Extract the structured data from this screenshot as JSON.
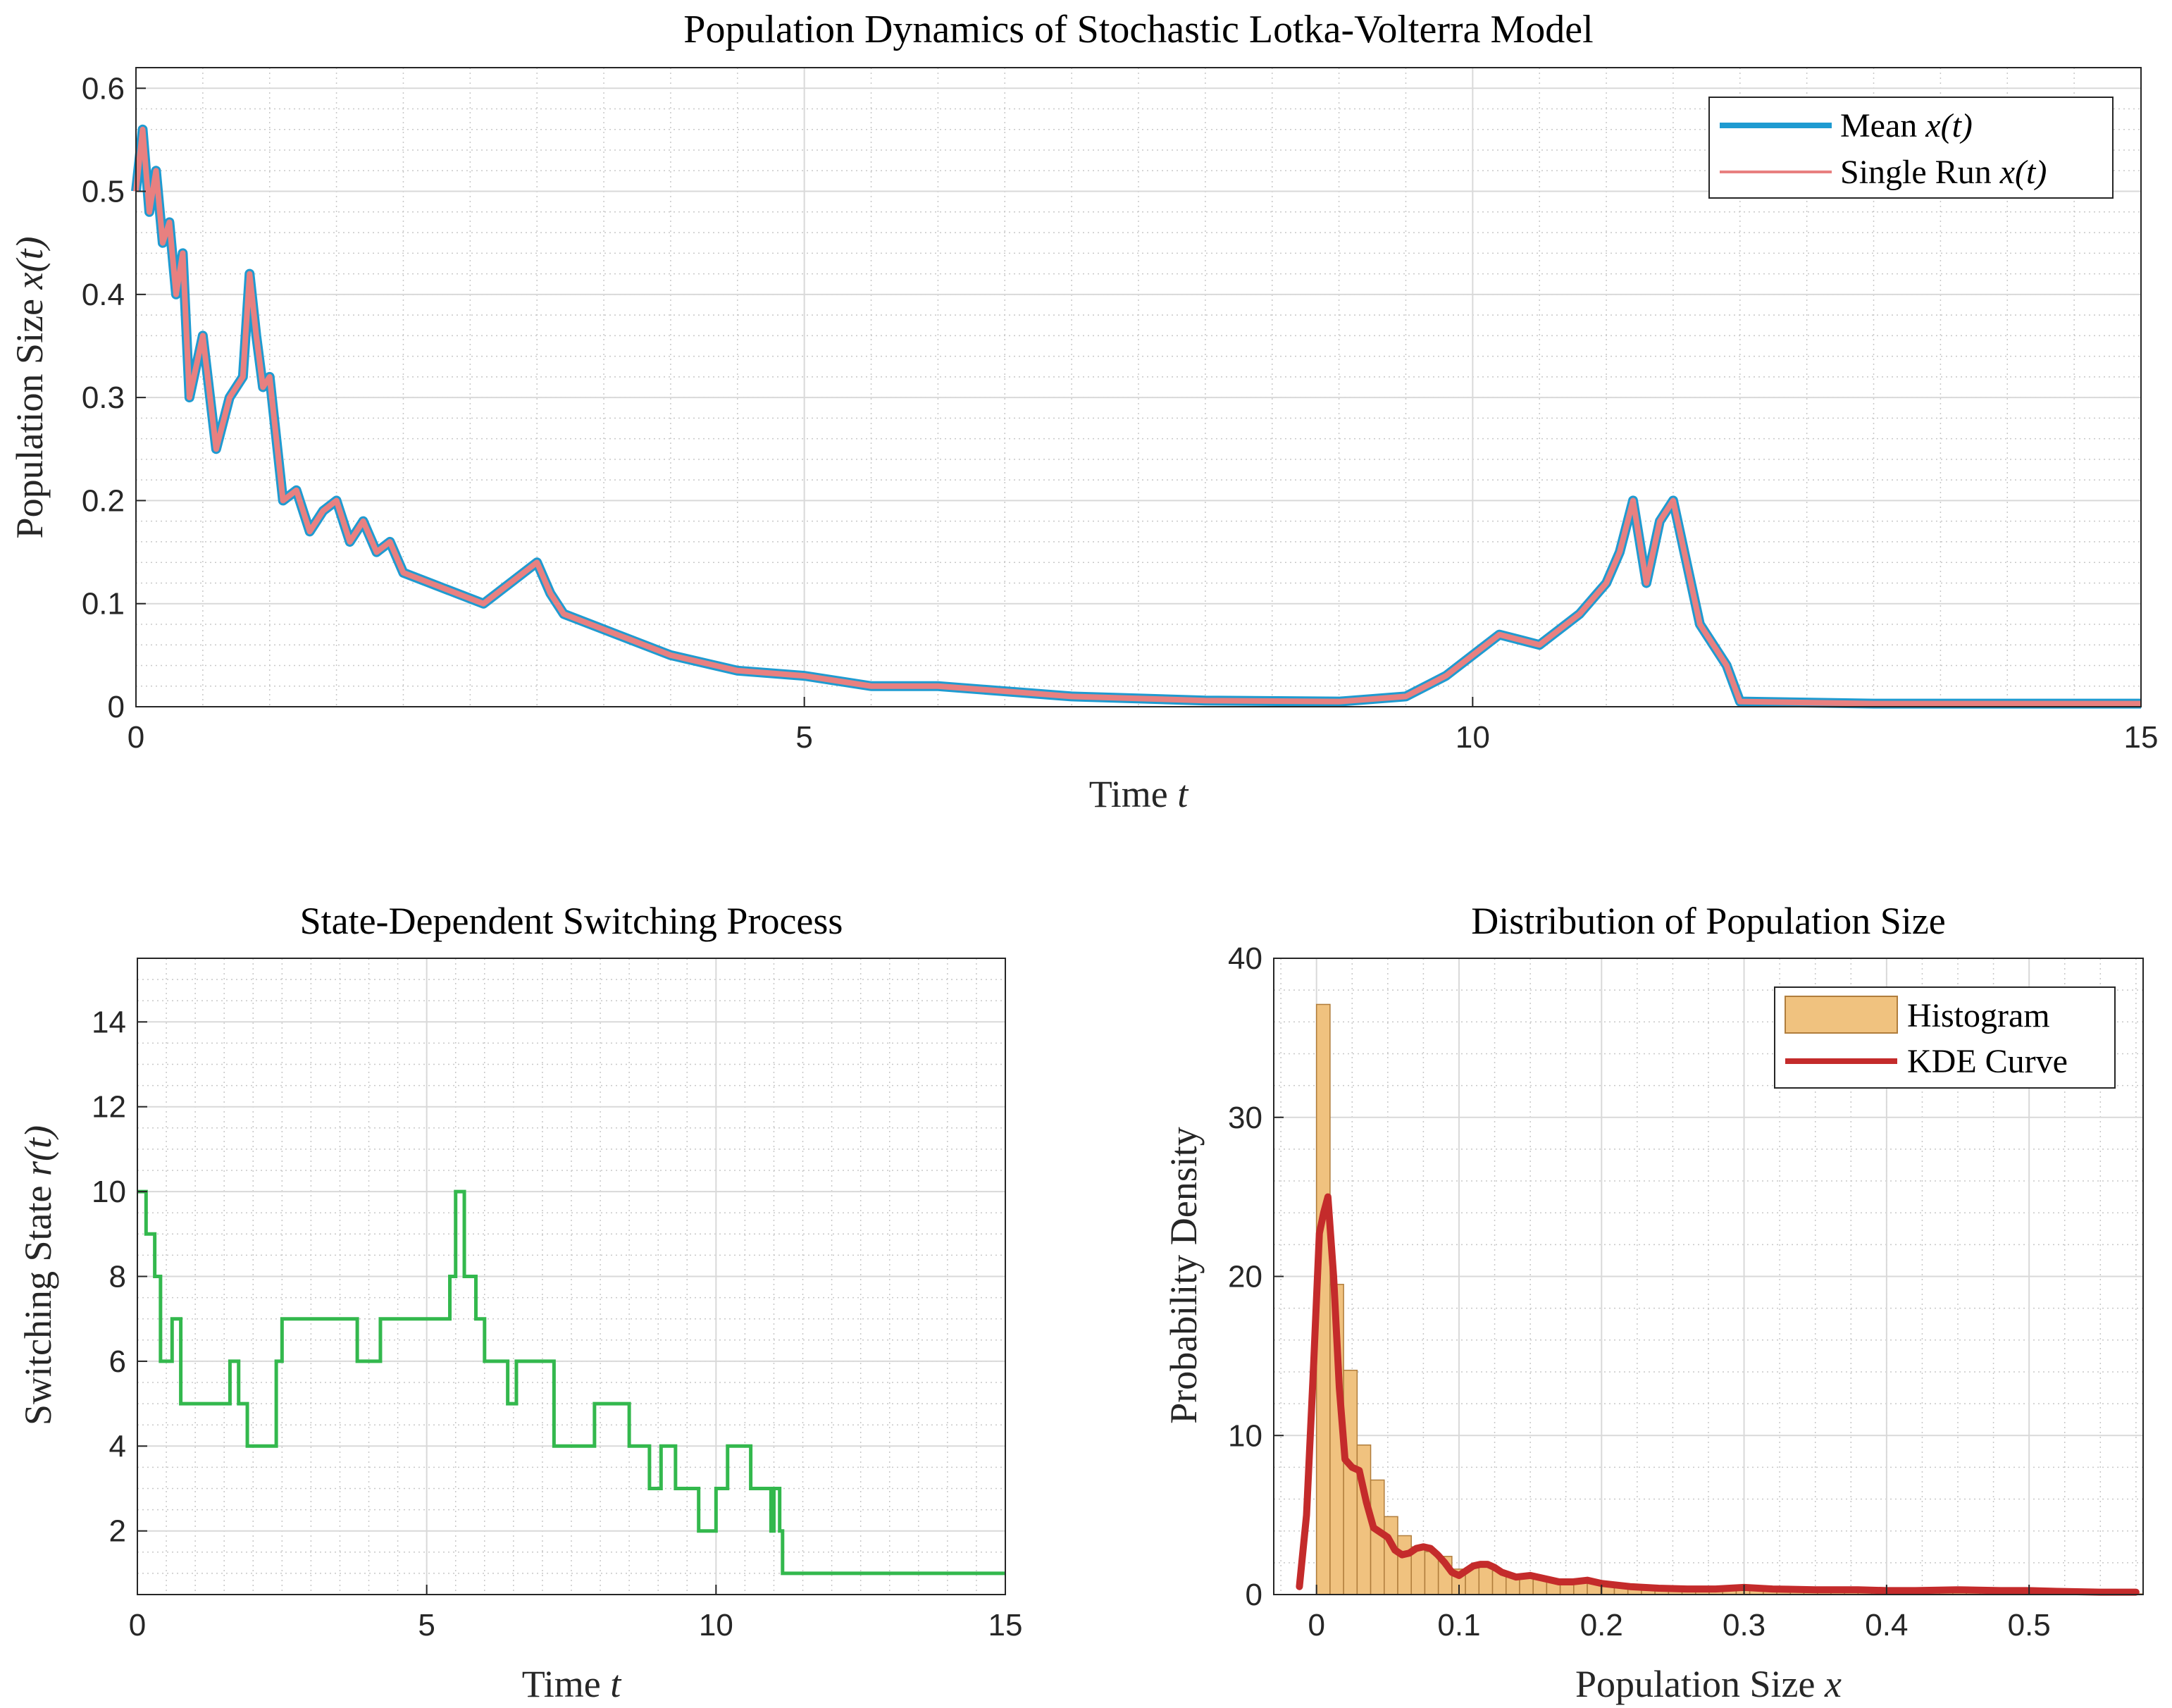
{
  "colors": {
    "mean_line": "#1f9bd1",
    "single_run": "#e88080",
    "switching": "#33b84d",
    "histogram_fill": "#f0c27f",
    "histogram_edge": "#b07d3c",
    "kde": "#c42b2b",
    "grid_major": "#d9d9d9",
    "grid_minor": "#c8c8c8",
    "axis": "#262626"
  },
  "chart_data": [
    {
      "type": "line",
      "title": "Population Dynamics of Stochastic Lotka-Volterra Model",
      "xlabel": "Time",
      "xlabel_var": "t",
      "ylabel": "Population Size",
      "ylabel_var": "x(t)",
      "xlim": [
        0,
        15
      ],
      "ylim": [
        0,
        0.62
      ],
      "xticks": [
        0,
        5,
        10,
        15
      ],
      "yticks": [
        0,
        0.1,
        0.2,
        0.3,
        0.4,
        0.5,
        0.6
      ],
      "xtick_labels": [
        "0",
        "5",
        "10",
        "15"
      ],
      "ytick_labels": [
        "0",
        "0.1",
        "0.2",
        "0.3",
        "0.4",
        "0.5",
        "0.6"
      ],
      "grid": true,
      "legend_position": "top-right",
      "series": [
        {
          "name": "Mean",
          "var": "x(t)",
          "x": [
            0,
            0.05,
            0.1,
            0.15,
            0.2,
            0.25,
            0.3,
            0.35,
            0.4,
            0.5,
            0.6,
            0.7,
            0.8,
            0.85,
            0.9,
            0.95,
            1.0,
            1.1,
            1.2,
            1.3,
            1.4,
            1.5,
            1.6,
            1.7,
            1.8,
            1.9,
            2.0,
            2.2,
            2.4,
            2.6,
            2.8,
            3.0,
            3.1,
            3.2,
            3.4,
            3.6,
            3.8,
            4.0,
            4.5,
            5.0,
            5.5,
            6.0,
            7.0,
            8.0,
            9.0,
            9.5,
            9.8,
            10.0,
            10.2,
            10.5,
            10.8,
            11.0,
            11.1,
            11.2,
            11.3,
            11.4,
            11.5,
            11.7,
            11.9,
            12.0,
            13.0,
            15.0
          ],
          "y": [
            0.5,
            0.56,
            0.48,
            0.52,
            0.45,
            0.47,
            0.4,
            0.44,
            0.3,
            0.36,
            0.25,
            0.3,
            0.32,
            0.42,
            0.36,
            0.31,
            0.32,
            0.2,
            0.21,
            0.17,
            0.19,
            0.2,
            0.16,
            0.18,
            0.15,
            0.16,
            0.13,
            0.12,
            0.11,
            0.1,
            0.12,
            0.14,
            0.11,
            0.09,
            0.08,
            0.07,
            0.06,
            0.05,
            0.035,
            0.03,
            0.02,
            0.02,
            0.01,
            0.006,
            0.005,
            0.01,
            0.03,
            0.05,
            0.07,
            0.06,
            0.09,
            0.12,
            0.15,
            0.2,
            0.12,
            0.18,
            0.2,
            0.08,
            0.04,
            0.005,
            0.003,
            0.003
          ]
        },
        {
          "name": "Single Run",
          "var": "x(t)",
          "x": [
            0,
            0.05,
            0.1,
            0.15,
            0.2,
            0.25,
            0.3,
            0.35,
            0.4,
            0.5,
            0.6,
            0.7,
            0.8,
            0.85,
            0.9,
            0.95,
            1.0,
            1.1,
            1.2,
            1.3,
            1.4,
            1.5,
            1.6,
            1.7,
            1.8,
            1.9,
            2.0,
            2.2,
            2.4,
            2.6,
            2.8,
            3.0,
            3.1,
            3.2,
            3.4,
            3.6,
            3.8,
            4.0,
            4.5,
            5.0,
            5.5,
            6.0,
            7.0,
            8.0,
            9.0,
            9.5,
            9.8,
            10.0,
            10.2,
            10.5,
            10.8,
            11.0,
            11.1,
            11.2,
            11.3,
            11.4,
            11.5,
            11.7,
            11.9,
            12.0,
            13.0,
            15.0
          ],
          "y": [
            0.5,
            0.56,
            0.48,
            0.52,
            0.45,
            0.47,
            0.4,
            0.44,
            0.3,
            0.36,
            0.25,
            0.3,
            0.32,
            0.42,
            0.36,
            0.31,
            0.32,
            0.2,
            0.21,
            0.17,
            0.19,
            0.2,
            0.16,
            0.18,
            0.15,
            0.16,
            0.13,
            0.12,
            0.11,
            0.1,
            0.12,
            0.14,
            0.11,
            0.09,
            0.08,
            0.07,
            0.06,
            0.05,
            0.035,
            0.03,
            0.02,
            0.02,
            0.01,
            0.006,
            0.005,
            0.01,
            0.03,
            0.05,
            0.07,
            0.06,
            0.09,
            0.12,
            0.15,
            0.2,
            0.12,
            0.18,
            0.2,
            0.08,
            0.04,
            0.005,
            0.003,
            0.003
          ]
        }
      ]
    },
    {
      "type": "line",
      "title": "State-Dependent Switching Process",
      "xlabel": "Time",
      "xlabel_var": "t",
      "ylabel": "Switching State",
      "ylabel_var": "r(t)",
      "xlim": [
        0,
        15
      ],
      "ylim": [
        0.5,
        15.5
      ],
      "xticks": [
        0,
        5,
        10,
        15
      ],
      "yticks": [
        2,
        4,
        6,
        8,
        10,
        12,
        14
      ],
      "xtick_labels": [
        "0",
        "5",
        "10",
        "15"
      ],
      "ytick_labels": [
        "2",
        "4",
        "6",
        "8",
        "10",
        "12",
        "14"
      ],
      "grid": true,
      "series": [
        {
          "name": "r(t)",
          "step_x": [
            0,
            0.15,
            0.3,
            0.4,
            0.6,
            0.75,
            1.6,
            1.75,
            1.9,
            2.4,
            2.5,
            3.8,
            4.2,
            5.4,
            5.5,
            5.65,
            5.85,
            6.0,
            6.4,
            6.55,
            7.2,
            7.9,
            8.5,
            8.85,
            9.05,
            9.3,
            9.7,
            10.0,
            10.2,
            10.6,
            10.95,
            11.0,
            11.1,
            11.15,
            15.0
          ],
          "step_y": [
            10,
            9,
            8,
            6,
            7,
            5,
            6,
            5,
            4,
            6,
            7,
            6,
            7,
            8,
            10,
            8,
            7,
            6,
            5,
            6,
            4,
            5,
            4,
            3,
            4,
            3,
            2,
            3,
            4,
            3,
            2,
            3,
            2,
            1,
            1
          ]
        }
      ]
    },
    {
      "type": "bar",
      "title": "Distribution of Population Size",
      "xlabel": "Population Size",
      "xlabel_var": "x",
      "ylabel": "Probability Density",
      "xlim": [
        -0.03,
        0.58
      ],
      "ylim": [
        0,
        40
      ],
      "xticks": [
        0,
        0.1,
        0.2,
        0.3,
        0.4,
        0.5
      ],
      "yticks": [
        0,
        10,
        20,
        30,
        40
      ],
      "xtick_labels": [
        "0",
        "0.1",
        "0.2",
        "0.3",
        "0.4",
        "0.5"
      ],
      "ytick_labels": [
        "0",
        "10",
        "20",
        "30",
        "40"
      ],
      "grid": true,
      "legend_position": "top-right",
      "histogram": {
        "name": "Histogram",
        "bin_width": 0.0095,
        "bin_starts": [
          0,
          0.0095,
          0.019,
          0.0285,
          0.038,
          0.0475,
          0.057,
          0.0665,
          0.076,
          0.0855,
          0.095,
          0.1045,
          0.114,
          0.1235,
          0.133,
          0.1425,
          0.152,
          0.1615,
          0.171,
          0.1805,
          0.19,
          0.1995,
          0.209,
          0.2185,
          0.228,
          0.2375,
          0.247,
          0.2565,
          0.266,
          0.2755,
          0.285,
          0.2945,
          0.304,
          0.3135,
          0.323,
          0.3325,
          0.342,
          0.3515,
          0.361,
          0.3705,
          0.38,
          0.3895,
          0.399,
          0.4085,
          0.418,
          0.4275,
          0.437,
          0.4465,
          0.456,
          0.4655,
          0.475,
          0.4845,
          0.494,
          0.5035,
          0.513,
          0.5225,
          0.532,
          0.5415,
          0.551,
          0.5605,
          0.57
        ],
        "density": [
          37.1,
          19.5,
          14.1,
          9.4,
          7.2,
          4.9,
          3.7,
          3.0,
          2.7,
          2.4,
          1.6,
          1.7,
          1.9,
          1.5,
          1.2,
          1.1,
          0.95,
          0.8,
          0.7,
          0.8,
          0.7,
          0.55,
          0.5,
          0.45,
          0.4,
          0.35,
          0.3,
          0.35,
          0.35,
          0.4,
          0.4,
          0.45,
          0.35,
          0.3,
          0.3,
          0.25,
          0.25,
          0.3,
          0.25,
          0.2,
          0.2,
          0.2,
          0.2,
          0.2,
          0.2,
          0.2,
          0.2,
          0.2,
          0.25,
          0.2,
          0.15,
          0.15,
          0.1,
          0.1,
          0.1,
          0.1,
          0.08,
          0.08,
          0.06,
          0.05,
          0.04
        ]
      },
      "kde": {
        "name": "KDE Curve",
        "x": [
          -0.012,
          -0.007,
          -0.002,
          0.002,
          0.005,
          0.008,
          0.012,
          0.016,
          0.02,
          0.025,
          0.03,
          0.035,
          0.04,
          0.045,
          0.05,
          0.055,
          0.06,
          0.065,
          0.07,
          0.075,
          0.08,
          0.085,
          0.09,
          0.095,
          0.1,
          0.105,
          0.11,
          0.115,
          0.12,
          0.125,
          0.13,
          0.14,
          0.15,
          0.16,
          0.17,
          0.18,
          0.19,
          0.2,
          0.22,
          0.24,
          0.26,
          0.28,
          0.3,
          0.32,
          0.35,
          0.38,
          0.4,
          0.42,
          0.45,
          0.48,
          0.5,
          0.52,
          0.55,
          0.575
        ],
        "y": [
          0.5,
          5.0,
          14.5,
          22.7,
          24.0,
          25.0,
          20.0,
          13.0,
          8.5,
          8.0,
          7.8,
          5.8,
          4.2,
          3.9,
          3.6,
          2.8,
          2.5,
          2.6,
          2.9,
          3.0,
          2.9,
          2.5,
          2.0,
          1.4,
          1.2,
          1.5,
          1.8,
          1.9,
          1.9,
          1.7,
          1.4,
          1.1,
          1.2,
          1.0,
          0.8,
          0.8,
          0.9,
          0.7,
          0.5,
          0.4,
          0.35,
          0.35,
          0.45,
          0.35,
          0.3,
          0.3,
          0.25,
          0.25,
          0.3,
          0.25,
          0.25,
          0.2,
          0.15,
          0.15
        ]
      },
      "legend": [
        {
          "name": "Histogram"
        },
        {
          "name": "KDE Curve"
        }
      ]
    }
  ]
}
